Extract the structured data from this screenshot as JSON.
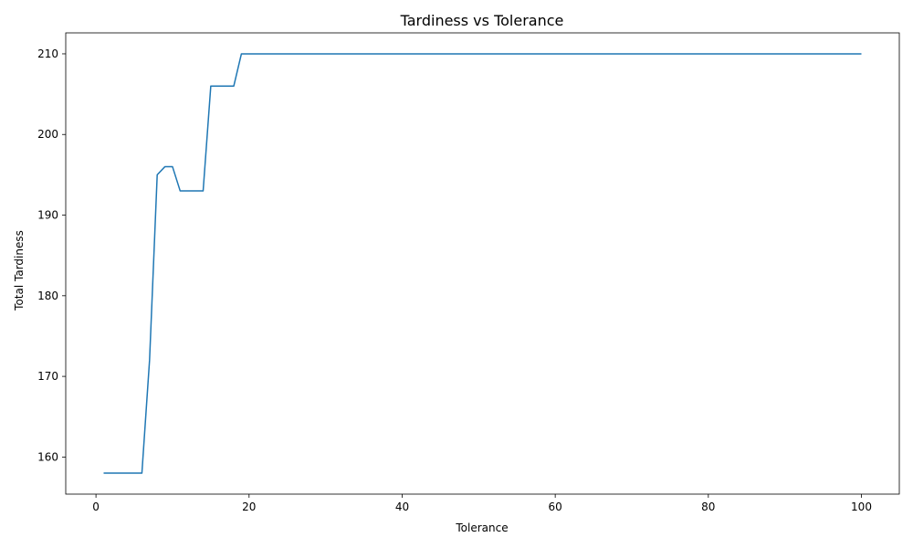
{
  "chart_data": {
    "type": "line",
    "title": "Tardiness vs Tolerance",
    "xlabel": "Tolerance",
    "ylabel": "Total Tardiness",
    "xlim": [
      -3.95,
      104.95
    ],
    "ylim": [
      155.4,
      212.6
    ],
    "xticks": [
      0,
      20,
      40,
      60,
      80,
      100
    ],
    "yticks": [
      160,
      170,
      180,
      190,
      200,
      210
    ],
    "grid": false,
    "series": [
      {
        "color": "#1f77b4",
        "x": [
          1,
          2,
          3,
          4,
          5,
          6,
          7,
          8,
          9,
          10,
          11,
          12,
          13,
          14,
          15,
          16,
          17,
          18,
          19,
          20,
          100
        ],
        "y": [
          158,
          158,
          158,
          158,
          158,
          158,
          172,
          195,
          196,
          196,
          193,
          193,
          193,
          193,
          206,
          206,
          206,
          206,
          210,
          210,
          210
        ]
      }
    ]
  }
}
